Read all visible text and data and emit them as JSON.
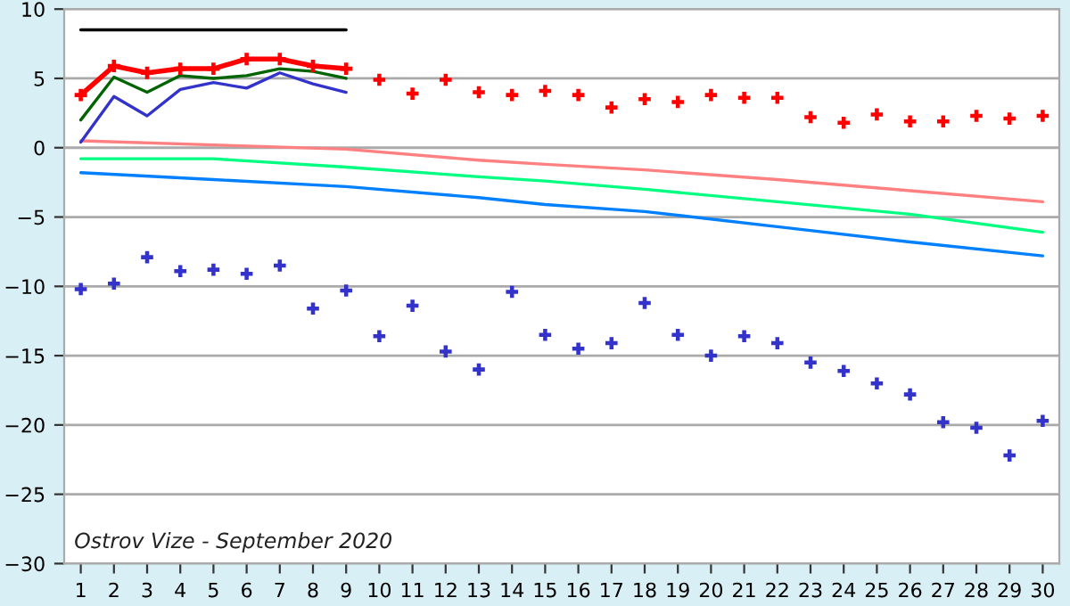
{
  "chart_data": {
    "type": "line",
    "annotations": [
      "Ostrov Vize - September 2020"
    ],
    "xlim": [
      0.5,
      30.5
    ],
    "xticks": [
      1,
      2,
      3,
      4,
      5,
      6,
      7,
      8,
      9,
      10,
      11,
      12,
      13,
      14,
      15,
      16,
      17,
      18,
      19,
      20,
      21,
      22,
      23,
      24,
      25,
      26,
      27,
      28,
      29,
      30
    ],
    "ylim": [
      -30,
      10
    ],
    "yticks": [
      -30,
      -25,
      -20,
      -15,
      -10,
      -5,
      0,
      5,
      10
    ],
    "grid": "y",
    "series": [
      {
        "color": "#ff8080",
        "marker": "none",
        "x": [
          1,
          5,
          9,
          13,
          15,
          18,
          22,
          26,
          30
        ],
        "values": [
          0.5,
          0.2,
          -0.1,
          -0.9,
          -1.2,
          -1.6,
          -2.3,
          -3.1,
          -3.9
        ]
      },
      {
        "color": "#00ff80",
        "marker": "none",
        "x": [
          1,
          5,
          9,
          13,
          15,
          18,
          22,
          26,
          30
        ],
        "values": [
          -0.8,
          -0.8,
          -1.4,
          -2.1,
          -2.4,
          -3.0,
          -3.9,
          -4.8,
          -6.1
        ]
      },
      {
        "color": "#0080ff",
        "marker": "none",
        "x": [
          1,
          5,
          9,
          13,
          15,
          18,
          22,
          26,
          30
        ],
        "values": [
          -1.8,
          -2.3,
          -2.8,
          -3.6,
          -4.1,
          -4.6,
          -5.7,
          -6.8,
          -7.8
        ]
      },
      {
        "color": "#3333cc",
        "marker": "none",
        "x": [
          1,
          2,
          3,
          4,
          5,
          6,
          7,
          8,
          9
        ],
        "values": [
          0.4,
          3.7,
          2.3,
          4.2,
          4.7,
          4.3,
          5.4,
          4.6,
          4.0
        ]
      },
      {
        "color": "#006400",
        "marker": "none",
        "x": [
          1,
          2,
          3,
          4,
          5,
          6,
          7,
          8,
          9
        ],
        "values": [
          2.0,
          5.1,
          4.0,
          5.2,
          5.0,
          5.2,
          5.7,
          5.5,
          5.0
        ]
      },
      {
        "color": "#ff0000",
        "marker": "cross",
        "x": [
          1,
          2,
          3,
          4,
          5,
          6,
          7,
          8,
          9
        ],
        "values": [
          3.8,
          5.9,
          5.4,
          5.7,
          5.7,
          6.4,
          6.4,
          5.9,
          5.7
        ]
      },
      {
        "type": "scatter",
        "color": "#ff0000",
        "marker": "cross",
        "x": [
          10,
          11,
          12,
          13,
          14,
          15,
          16,
          17,
          18,
          19,
          20,
          21,
          22,
          23,
          24,
          25,
          26,
          27,
          28,
          29,
          30
        ],
        "values": [
          4.9,
          3.9,
          4.9,
          4.0,
          3.8,
          4.1,
          3.8,
          2.9,
          3.5,
          3.3,
          3.8,
          3.6,
          3.6,
          2.2,
          1.8,
          2.4,
          1.9,
          1.9,
          2.3,
          2.1,
          2.3
        ]
      },
      {
        "type": "scatter",
        "color": "#3333cc",
        "marker": "cross",
        "x": [
          1,
          2,
          3,
          4,
          5,
          6,
          7,
          8,
          9,
          10,
          11,
          12,
          13,
          14,
          15,
          16,
          17,
          18,
          19,
          20,
          21,
          22,
          23,
          24,
          25,
          26,
          27,
          28,
          29,
          30
        ],
        "values": [
          -10.2,
          -9.8,
          -7.9,
          -8.9,
          -8.8,
          -9.1,
          -8.5,
          -11.6,
          -10.3,
          -13.6,
          -11.4,
          -14.7,
          -16.0,
          -10.4,
          -13.5,
          -14.5,
          -14.1,
          -11.2,
          -13.5,
          -15.0,
          -13.6,
          -14.1,
          -15.5,
          -16.1,
          -17.0,
          -17.8,
          -19.8,
          -20.2,
          -22.2,
          -19.7
        ]
      },
      {
        "color": "#000000",
        "marker": "none",
        "x": [
          1,
          9
        ],
        "values": [
          8.5,
          8.5
        ]
      }
    ]
  }
}
